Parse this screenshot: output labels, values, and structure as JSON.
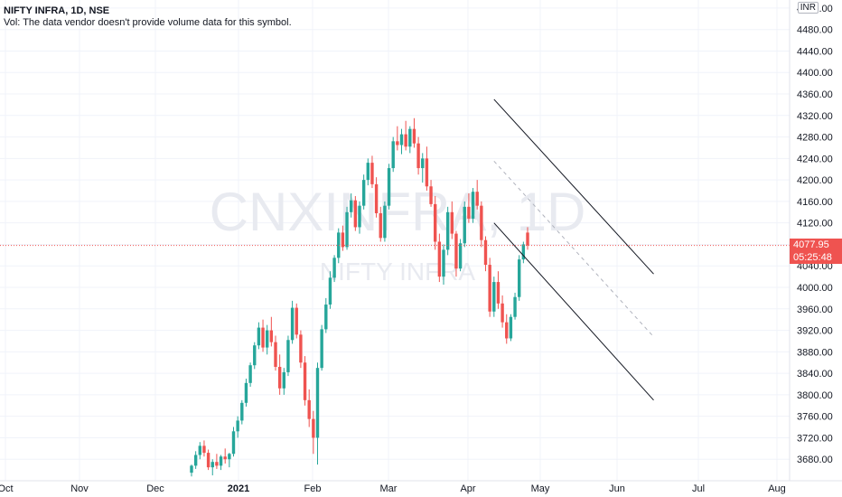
{
  "legend": {
    "symbol": "NIFTY INFRA, 1D, NSE",
    "volume_note": "Vol: The data vendor doesn't provide volume data for this symbol."
  },
  "currency_badge": "INR",
  "last_price": "4077.95",
  "countdown": "05:25:48",
  "watermark": {
    "big": "CNXINFRA, 1D",
    "small": "NIFTY INFRA"
  },
  "colors": {
    "up": "#26a69a",
    "down": "#ef5350",
    "grid": "#f0f3fa",
    "channel": "#131722"
  },
  "chart_data": {
    "type": "candlestick",
    "ylim": [
      3640,
      4535
    ],
    "y_ticks": [
      4520,
      4480,
      4440,
      4400,
      4360,
      4320,
      4280,
      4240,
      4200,
      4160,
      4120,
      4080,
      4040,
      4000,
      3960,
      3920,
      3880,
      3840,
      3800,
      3760,
      3720,
      3680
    ],
    "x_ticks": [
      "Oct",
      "Nov",
      "Dec",
      "2021",
      "Feb",
      "Mar",
      "Apr",
      "May",
      "Jun",
      "Jul",
      "Aug"
    ],
    "last_price": 4077.95,
    "candles": [
      [
        3655,
        3670,
        3648,
        3668
      ],
      [
        3668,
        3695,
        3662,
        3688
      ],
      [
        3688,
        3712,
        3680,
        3705
      ],
      [
        3705,
        3715,
        3685,
        3692
      ],
      [
        3692,
        3698,
        3660,
        3665
      ],
      [
        3665,
        3680,
        3650,
        3675
      ],
      [
        3675,
        3690,
        3662,
        3668
      ],
      [
        3668,
        3688,
        3660,
        3685
      ],
      [
        3685,
        3700,
        3672,
        3680
      ],
      [
        3680,
        3692,
        3665,
        3690
      ],
      [
        3690,
        3740,
        3685,
        3732
      ],
      [
        3732,
        3760,
        3720,
        3752
      ],
      [
        3752,
        3790,
        3745,
        3785
      ],
      [
        3785,
        3830,
        3778,
        3822
      ],
      [
        3822,
        3860,
        3815,
        3855
      ],
      [
        3855,
        3898,
        3848,
        3892
      ],
      [
        3892,
        3935,
        3885,
        3925
      ],
      [
        3925,
        3940,
        3880,
        3888
      ],
      [
        3888,
        3930,
        3875,
        3920
      ],
      [
        3920,
        3945,
        3890,
        3898
      ],
      [
        3898,
        3910,
        3845,
        3852
      ],
      [
        3852,
        3875,
        3800,
        3812
      ],
      [
        3812,
        3850,
        3800,
        3842
      ],
      [
        3842,
        3910,
        3835,
        3902
      ],
      [
        3902,
        3975,
        3895,
        3962
      ],
      [
        3962,
        3970,
        3905,
        3912
      ],
      [
        3912,
        3920,
        3850,
        3860
      ],
      [
        3860,
        3872,
        3780,
        3790
      ],
      [
        3790,
        3810,
        3740,
        3755
      ],
      [
        3755,
        3770,
        3690,
        3720
      ],
      [
        3720,
        3860,
        3670,
        3850
      ],
      [
        3850,
        3930,
        3845,
        3922
      ],
      [
        3922,
        3980,
        3915,
        3968
      ],
      [
        3968,
        4030,
        3960,
        4018
      ],
      [
        4018,
        4060,
        4010,
        4055
      ],
      [
        4055,
        4110,
        4045,
        4102
      ],
      [
        4102,
        4115,
        4068,
        4075
      ],
      [
        4075,
        4150,
        4070,
        4140
      ],
      [
        4140,
        4175,
        4130,
        4162
      ],
      [
        4162,
        4170,
        4105,
        4112
      ],
      [
        4112,
        4160,
        4100,
        4152
      ],
      [
        4152,
        4210,
        4145,
        4200
      ],
      [
        4200,
        4240,
        4190,
        4232
      ],
      [
        4232,
        4245,
        4185,
        4192
      ],
      [
        4192,
        4205,
        4130,
        4138
      ],
      [
        4138,
        4150,
        4085,
        4092
      ],
      [
        4092,
        4160,
        4085,
        4152
      ],
      [
        4152,
        4230,
        4145,
        4222
      ],
      [
        4222,
        4280,
        4215,
        4272
      ],
      [
        4272,
        4300,
        4255,
        4265
      ],
      [
        4265,
        4295,
        4248,
        4285
      ],
      [
        4285,
        4310,
        4255,
        4262
      ],
      [
        4262,
        4300,
        4250,
        4295
      ],
      [
        4295,
        4315,
        4260,
        4268
      ],
      [
        4268,
        4280,
        4210,
        4222
      ],
      [
        4222,
        4250,
        4195,
        4240
      ],
      [
        4240,
        4262,
        4180,
        4188
      ],
      [
        4188,
        4200,
        4150,
        4155
      ],
      [
        4155,
        4170,
        4070,
        4085
      ],
      [
        4085,
        4100,
        4010,
        4020
      ],
      [
        4020,
        4080,
        4005,
        4070
      ],
      [
        4070,
        4150,
        4060,
        4140
      ],
      [
        4140,
        4160,
        4090,
        4100
      ],
      [
        4100,
        4105,
        4020,
        4035
      ],
      [
        4035,
        4090,
        4030,
        4082
      ],
      [
        4082,
        4160,
        4075,
        4150
      ],
      [
        4150,
        4175,
        4120,
        4128
      ],
      [
        4128,
        4185,
        4120,
        4178
      ],
      [
        4178,
        4200,
        4145,
        4152
      ],
      [
        4152,
        4160,
        4075,
        4088
      ],
      [
        4088,
        4095,
        4030,
        4042
      ],
      [
        4042,
        4055,
        3945,
        3955
      ],
      [
        3955,
        4020,
        3945,
        4010
      ],
      [
        4010,
        4030,
        3960,
        3970
      ],
      [
        3970,
        3985,
        3925,
        3935
      ],
      [
        3935,
        3950,
        3895,
        3905
      ],
      [
        3905,
        3950,
        3900,
        3945
      ],
      [
        3945,
        3990,
        3940,
        3982
      ],
      [
        3982,
        4060,
        3975,
        4052
      ],
      [
        4052,
        4085,
        4045,
        4080
      ],
      [
        4102,
        4112,
        4070,
        4078
      ]
    ],
    "channel_lines": [
      {
        "style": "solid",
        "from": [
          -8,
          4350
        ],
        "to": [
          30,
          4025
        ]
      },
      {
        "style": "solid",
        "from": [
          -8,
          4120
        ],
        "to": [
          30,
          3790
        ]
      },
      {
        "style": "dashed",
        "from": [
          -8,
          4235
        ],
        "to": [
          30,
          3908
        ]
      }
    ]
  }
}
